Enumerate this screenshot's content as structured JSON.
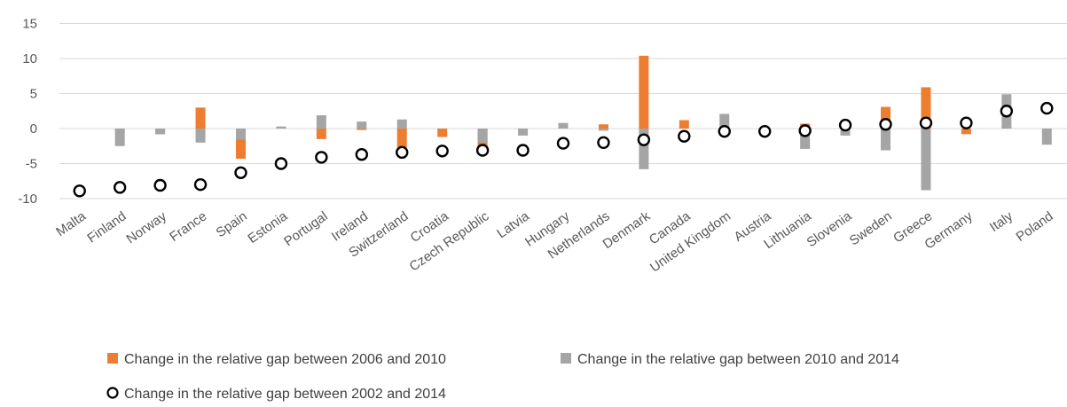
{
  "chart_data": {
    "type": "bar",
    "title": "",
    "xlabel": "",
    "ylabel": "",
    "ylim": [
      -10,
      15
    ],
    "yticks": [
      -10,
      -5,
      0,
      5,
      10,
      15
    ],
    "grid": true,
    "legend_position": "bottom",
    "categories": [
      "Malta",
      "Finland",
      "Norway",
      "France",
      "Spain",
      "Estonia",
      "Portugal",
      "Ireland",
      "Switzerland",
      "Croatia",
      "Czech Republic",
      "Latvia",
      "Hungary",
      "Netherlands",
      "Denmark",
      "Canada",
      "United Kingdom",
      "Austria",
      "Lithuania",
      "Slovenia",
      "Sweden",
      "Greece",
      "Germany",
      "Italy",
      "Poland"
    ],
    "series": [
      {
        "name": "Change in the relative gap between 2006 and 2010",
        "kind": "bar",
        "color": "#ED7D31",
        "values": [
          0,
          -0.5,
          -0.8,
          3.0,
          -4.3,
          0,
          -1.5,
          -0.2,
          -2.7,
          -1.2,
          -2.6,
          -0.6,
          0.3,
          0.6,
          10.4,
          1.2,
          0,
          0,
          0.7,
          0,
          3.1,
          5.9,
          -0.8,
          0.3,
          0
        ]
      },
      {
        "name": "Change in the relative gap between 2010 and 2014",
        "kind": "bar",
        "color": "#A5A5A5",
        "values": [
          0,
          -2.5,
          -0.8,
          -2.0,
          -1.6,
          0.3,
          1.9,
          1.0,
          1.3,
          0,
          -2.0,
          -1.0,
          0.8,
          -0.3,
          -5.8,
          0,
          2.1,
          0,
          -2.9,
          -1.0,
          -3.1,
          -8.8,
          0,
          4.9,
          -2.3
        ]
      },
      {
        "name": "Change in the relative gap between 2002 and 2014",
        "kind": "marker",
        "color": "#000000",
        "values": [
          -8.9,
          -8.4,
          -8.1,
          -8.0,
          -6.3,
          -5.0,
          -4.1,
          -3.7,
          -3.4,
          -3.2,
          -3.1,
          -3.1,
          -2.1,
          -2.0,
          -1.6,
          -1.1,
          -0.4,
          -0.4,
          -0.3,
          0.5,
          0.6,
          0.8,
          0.8,
          2.5,
          2.9
        ]
      }
    ]
  }
}
